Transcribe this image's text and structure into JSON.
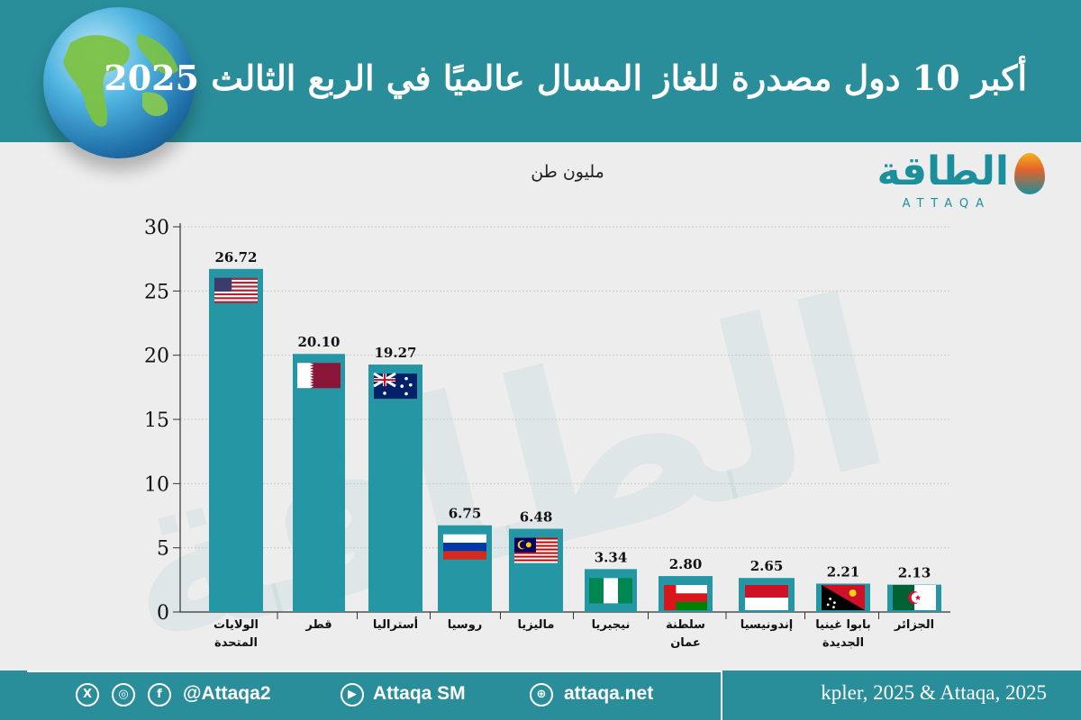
{
  "header": {
    "title": "أكبر 10 دول مصدرة للغاز المسال عالميًا في الربع الثالث 2025"
  },
  "logo": {
    "name": "الطاقة",
    "latin": "ATTAQA"
  },
  "unit_label": "مليون طن",
  "chart_data": {
    "type": "bar",
    "categories": [
      "الولايات المتحدة",
      "قطر",
      "أستراليا",
      "روسيا",
      "ماليزيا",
      "نيجيريا",
      "سلطنة عمان",
      "إندونيسيا",
      "بابوا غينيا الجديدة",
      "الجزائر"
    ],
    "category_lines": [
      [
        "الولايات",
        "المتحدة"
      ],
      [
        "قطر"
      ],
      [
        "أستراليا"
      ],
      [
        "روسيا"
      ],
      [
        "ماليزيا"
      ],
      [
        "نيجيريا"
      ],
      [
        "سلطنة",
        "عمان"
      ],
      [
        "إندونيسيا"
      ],
      [
        "بابوا غينيا",
        "الجديدة"
      ],
      [
        "الجزائر"
      ]
    ],
    "values": [
      26.72,
      20.1,
      19.27,
      6.75,
      6.48,
      3.34,
      2.8,
      2.65,
      2.21,
      2.13
    ],
    "value_labels": [
      "26.72",
      "20.10",
      "19.27",
      "6.75",
      "6.48",
      "3.34",
      "2.80",
      "2.65",
      "2.21",
      "2.13"
    ],
    "flags": [
      "usa-flag",
      "qatar-flag",
      "australia-flag",
      "russia-flag",
      "malaysia-flag",
      "nigeria-flag",
      "oman-flag",
      "indonesia-flag",
      "papua-new-guinea-flag",
      "algeria-flag"
    ],
    "yticks": [
      0,
      5,
      10,
      15,
      20,
      25,
      30
    ],
    "ylim": [
      0,
      30
    ],
    "grid": true,
    "bar_color": "#2596a4"
  },
  "footer": {
    "handle": "@Attaqa2",
    "youtube": "Attaqa SM",
    "website": "attaqa.net",
    "source": "kpler, 2025 & Attaqa, 2025"
  },
  "colors": {
    "header_bg": "#2a8d9a",
    "page_bg": "#ededed",
    "bar": "#2596a4"
  }
}
